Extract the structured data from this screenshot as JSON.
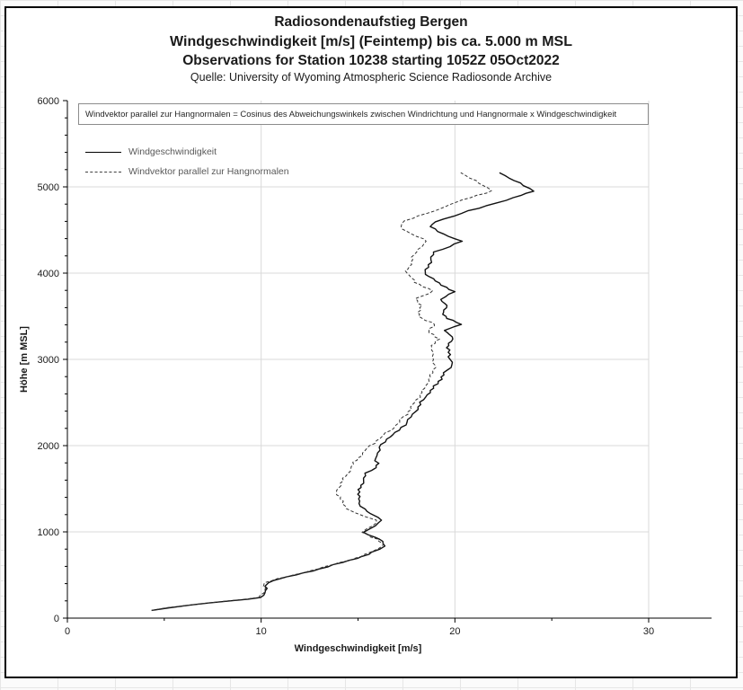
{
  "title": {
    "line1": "Radiosondenaufstieg Bergen",
    "line2": "Windgeschwindigkeit [m/s] (Feintemp) bis ca. 5.000 m MSL",
    "line3": "Observations for Station 10238 starting 1052Z 05Oct2022",
    "subtitle": "Quelle: University of Wyoming Atmospheric Science Radiosonde Archive"
  },
  "annotation": {
    "text": "Windvektor parallel zur Hangnormalen = Cosinus des Abweichungswinkels zwischen Windrichtung und Hangnormale x Windgeschwindigkeit"
  },
  "legend": {
    "items": [
      {
        "label": "Windgeschwindigkeit",
        "style": "solid"
      },
      {
        "label": "Windvektor parallel zur Hangnormalen",
        "style": "dashed"
      }
    ]
  },
  "chart_data": {
    "type": "line",
    "title": "Radiosondenaufstieg Bergen — Windgeschwindigkeit [m/s] bis ca. 5.000 m MSL",
    "xlabel": "Windgeschwindigkeit [m/s]",
    "ylabel": "Höhe [m MSL]",
    "xlim": [
      0,
      30
    ],
    "ylim": [
      0,
      6000
    ],
    "x_ticks": [
      0,
      10,
      20,
      30
    ],
    "y_ticks": [
      0,
      1000,
      2000,
      3000,
      4000,
      5000,
      6000
    ],
    "x_minor_step": 5,
    "y_minor_step": 200,
    "grid": true,
    "grid_color": "#d9d9d9",
    "legend_position": "top-left",
    "axes_note": "profile plot: x = wind speed [m/s], y = height [m MSL]",
    "series": [
      {
        "name": "Windgeschwindigkeit",
        "style": "solid",
        "color": "#111111",
        "points_format": [
          "speed_m_per_s",
          "height_m_msl"
        ],
        "points": [
          [
            4.4,
            90
          ],
          [
            5.3,
            120
          ],
          [
            6.3,
            150
          ],
          [
            7.3,
            175
          ],
          [
            8.3,
            200
          ],
          [
            9.3,
            220
          ],
          [
            9.95,
            240
          ],
          [
            10.15,
            265
          ],
          [
            10.3,
            320
          ],
          [
            10.2,
            370
          ],
          [
            10.35,
            410
          ],
          [
            10.65,
            435
          ],
          [
            11.4,
            480
          ],
          [
            12.2,
            525
          ],
          [
            13.0,
            570
          ],
          [
            13.8,
            620
          ],
          [
            14.6,
            670
          ],
          [
            15.2,
            715
          ],
          [
            15.75,
            765
          ],
          [
            16.2,
            800
          ],
          [
            16.35,
            835
          ],
          [
            16.3,
            865
          ],
          [
            16.1,
            915
          ],
          [
            15.6,
            965
          ],
          [
            15.35,
            995
          ],
          [
            15.55,
            1035
          ],
          [
            15.8,
            1070
          ],
          [
            16.1,
            1105
          ],
          [
            16.25,
            1135
          ],
          [
            16.0,
            1170
          ],
          [
            15.6,
            1210
          ],
          [
            15.3,
            1265
          ],
          [
            15.1,
            1330
          ],
          [
            15.0,
            1410
          ],
          [
            15.1,
            1490
          ],
          [
            15.2,
            1565
          ],
          [
            15.45,
            1680
          ],
          [
            15.85,
            1745
          ],
          [
            16.05,
            1795
          ],
          [
            15.9,
            1855
          ],
          [
            16.0,
            1915
          ],
          [
            16.15,
            1980
          ],
          [
            16.45,
            2075
          ],
          [
            17.15,
            2180
          ],
          [
            17.5,
            2270
          ],
          [
            17.85,
            2365
          ],
          [
            18.2,
            2475
          ],
          [
            18.55,
            2590
          ],
          [
            18.9,
            2665
          ],
          [
            19.15,
            2745
          ],
          [
            19.5,
            2845
          ],
          [
            19.85,
            2935
          ],
          [
            19.75,
            3030
          ],
          [
            19.6,
            3135
          ],
          [
            19.9,
            3235
          ],
          [
            19.5,
            3335
          ],
          [
            20.3,
            3405
          ],
          [
            19.6,
            3475
          ],
          [
            19.4,
            3545
          ],
          [
            19.55,
            3625
          ],
          [
            19.3,
            3695
          ],
          [
            19.9,
            3785
          ],
          [
            19.2,
            3885
          ],
          [
            18.45,
            3985
          ],
          [
            18.7,
            4125
          ],
          [
            18.95,
            4245
          ],
          [
            20.4,
            4370
          ],
          [
            19.3,
            4455
          ],
          [
            18.8,
            4540
          ],
          [
            18.95,
            4595
          ],
          [
            19.9,
            4660
          ],
          [
            20.8,
            4725
          ],
          [
            21.6,
            4780
          ],
          [
            23.1,
            4875
          ],
          [
            24.0,
            4950
          ],
          [
            23.4,
            5045
          ],
          [
            22.5,
            5130
          ],
          [
            22.3,
            5165
          ]
        ]
      },
      {
        "name": "Windvektor parallel zur Hangnormalen",
        "style": "dashed",
        "color": "#333333",
        "points_format": [
          "speed_m_per_s",
          "height_m_msl"
        ],
        "points": [
          [
            4.35,
            90
          ],
          [
            5.2,
            120
          ],
          [
            6.2,
            150
          ],
          [
            7.2,
            175
          ],
          [
            8.2,
            200
          ],
          [
            9.2,
            220
          ],
          [
            9.85,
            240
          ],
          [
            10.05,
            265
          ],
          [
            10.2,
            320
          ],
          [
            10.1,
            370
          ],
          [
            10.25,
            410
          ],
          [
            10.55,
            435
          ],
          [
            11.3,
            480
          ],
          [
            12.1,
            525
          ],
          [
            12.9,
            570
          ],
          [
            13.7,
            620
          ],
          [
            14.5,
            670
          ],
          [
            15.1,
            715
          ],
          [
            15.65,
            765
          ],
          [
            16.1,
            800
          ],
          [
            16.25,
            835
          ],
          [
            16.2,
            865
          ],
          [
            16.0,
            915
          ],
          [
            15.5,
            965
          ],
          [
            15.25,
            995
          ],
          [
            15.45,
            1035
          ],
          [
            15.7,
            1070
          ],
          [
            15.95,
            1105
          ],
          [
            16.05,
            1135
          ],
          [
            15.4,
            1175
          ],
          [
            14.85,
            1215
          ],
          [
            14.45,
            1270
          ],
          [
            14.15,
            1355
          ],
          [
            13.9,
            1455
          ],
          [
            14.1,
            1565
          ],
          [
            14.4,
            1650
          ],
          [
            14.6,
            1725
          ],
          [
            14.75,
            1785
          ],
          [
            15.0,
            1855
          ],
          [
            15.25,
            1915
          ],
          [
            15.5,
            1970
          ],
          [
            16.1,
            2085
          ],
          [
            16.7,
            2180
          ],
          [
            17.1,
            2270
          ],
          [
            17.5,
            2365
          ],
          [
            17.85,
            2475
          ],
          [
            18.2,
            2590
          ],
          [
            18.45,
            2665
          ],
          [
            18.6,
            2745
          ],
          [
            18.85,
            2845
          ],
          [
            18.95,
            2935
          ],
          [
            18.85,
            3030
          ],
          [
            18.8,
            3135
          ],
          [
            19.1,
            3235
          ],
          [
            18.65,
            3335
          ],
          [
            18.95,
            3405
          ],
          [
            18.3,
            3475
          ],
          [
            18.1,
            3545
          ],
          [
            18.25,
            3625
          ],
          [
            18.0,
            3705
          ],
          [
            18.9,
            3795
          ],
          [
            17.9,
            3895
          ],
          [
            17.5,
            4025
          ],
          [
            17.75,
            4125
          ],
          [
            17.95,
            4245
          ],
          [
            18.6,
            4370
          ],
          [
            17.7,
            4455
          ],
          [
            17.2,
            4540
          ],
          [
            17.35,
            4605
          ],
          [
            18.2,
            4665
          ],
          [
            19.0,
            4725
          ],
          [
            19.7,
            4795
          ],
          [
            20.8,
            4875
          ],
          [
            21.9,
            4955
          ],
          [
            21.3,
            5045
          ],
          [
            20.5,
            5130
          ],
          [
            20.3,
            5165
          ]
        ]
      }
    ]
  }
}
